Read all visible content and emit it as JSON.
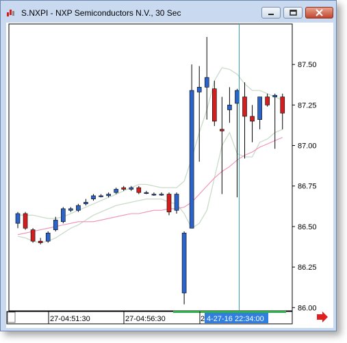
{
  "window": {
    "title": "S.NXPI - NXP Semiconductors N.V., 30 Sec"
  },
  "icons": [
    "app-icon",
    "minimize-icon",
    "maximize-icon",
    "close-icon",
    "scroll-right-arrow-icon"
  ],
  "colors": {
    "up_candle": "#2b63c8",
    "down_candle": "#d11f1f",
    "band": "#c8dcc8",
    "moving_average": "#ef8fb7",
    "crosshair": "#3a9aa8",
    "time_label_bg": "#2f7ee0"
  },
  "chart_data": {
    "type": "candlestick",
    "y_ticks": [
      "87.50",
      "87.25",
      "87.00",
      "86.75",
      "86.50",
      "86.25",
      "86.00"
    ],
    "y_tick_values": [
      87.5,
      87.25,
      87.0,
      86.75,
      86.5,
      86.25,
      86.0
    ],
    "ylim": [
      85.98,
      87.75
    ],
    "x_labels": [
      "27-04:51:30",
      "27-04:56:30"
    ],
    "crosshair_time": "4-27-16 22:34:00",
    "crosshair_bar": 29,
    "candles": [
      {
        "o": 86.52,
        "h": 86.59,
        "l": 86.49,
        "c": 86.58
      },
      {
        "o": 86.58,
        "h": 86.59,
        "l": 86.48,
        "c": 86.49
      },
      {
        "o": 86.48,
        "h": 86.49,
        "l": 86.4,
        "c": 86.41
      },
      {
        "o": 86.41,
        "h": 86.43,
        "l": 86.39,
        "c": 86.4
      },
      {
        "o": 86.41,
        "h": 86.47,
        "l": 86.4,
        "c": 86.46
      },
      {
        "o": 86.48,
        "h": 86.56,
        "l": 86.47,
        "c": 86.54
      },
      {
        "o": 86.53,
        "h": 86.62,
        "l": 86.52,
        "c": 86.61
      },
      {
        "o": 86.6,
        "h": 86.62,
        "l": 86.59,
        "c": 86.61
      },
      {
        "o": 86.6,
        "h": 86.64,
        "l": 86.59,
        "c": 86.63
      },
      {
        "o": 86.64,
        "h": 86.67,
        "l": 86.63,
        "c": 86.65
      },
      {
        "o": 86.67,
        "h": 86.7,
        "l": 86.66,
        "c": 86.69
      },
      {
        "o": 86.69,
        "h": 86.7,
        "l": 86.68,
        "c": 86.69
      },
      {
        "o": 86.69,
        "h": 86.71,
        "l": 86.68,
        "c": 86.7
      },
      {
        "o": 86.71,
        "h": 86.74,
        "l": 86.7,
        "c": 86.73
      },
      {
        "o": 86.74,
        "h": 86.75,
        "l": 86.72,
        "c": 86.73
      },
      {
        "o": 86.73,
        "h": 86.75,
        "l": 86.72,
        "c": 86.74
      },
      {
        "o": 86.74,
        "h": 86.75,
        "l": 86.7,
        "c": 86.71
      },
      {
        "o": 86.71,
        "h": 86.72,
        "l": 86.7,
        "c": 86.71
      },
      {
        "o": 86.7,
        "h": 86.71,
        "l": 86.69,
        "c": 86.7
      },
      {
        "o": 86.7,
        "h": 86.71,
        "l": 86.69,
        "c": 86.7
      },
      {
        "o": 86.7,
        "h": 86.71,
        "l": 86.57,
        "c": 86.59
      },
      {
        "o": 86.6,
        "h": 86.71,
        "l": 86.58,
        "c": 86.7
      },
      {
        "o": 86.09,
        "h": 86.47,
        "l": 86.02,
        "c": 86.46
      },
      {
        "o": 86.49,
        "h": 87.5,
        "l": 86.49,
        "c": 87.34
      },
      {
        "o": 87.33,
        "h": 87.49,
        "l": 86.9,
        "c": 87.36
      },
      {
        "o": 87.36,
        "h": 87.67,
        "l": 87.16,
        "c": 87.42
      },
      {
        "o": 87.35,
        "h": 87.4,
        "l": 87.12,
        "c": 87.15
      },
      {
        "o": 87.1,
        "h": 87.3,
        "l": 86.7,
        "c": 87.09
      },
      {
        "o": 87.22,
        "h": 87.36,
        "l": 87.14,
        "c": 87.25
      },
      {
        "o": 87.26,
        "h": 87.35,
        "l": 86.68,
        "c": 87.34
      },
      {
        "o": 87.3,
        "h": 87.39,
        "l": 86.92,
        "c": 87.18
      },
      {
        "o": 87.18,
        "h": 87.25,
        "l": 87.02,
        "c": 87.15
      },
      {
        "o": 87.16,
        "h": 87.3,
        "l": 87.1,
        "c": 87.3
      },
      {
        "o": 87.3,
        "h": 87.32,
        "l": 87.24,
        "c": 87.25
      },
      {
        "o": 87.3,
        "h": 87.32,
        "l": 86.98,
        "c": 87.31
      },
      {
        "o": 87.3,
        "h": 87.32,
        "l": 87.1,
        "c": 87.2
      }
    ],
    "upper_band": [
      86.57,
      86.57,
      86.57,
      86.56,
      86.55,
      86.55,
      86.56,
      86.58,
      86.6,
      86.62,
      86.64,
      86.66,
      86.68,
      86.7,
      86.72,
      86.74,
      86.76,
      86.76,
      86.75,
      86.74,
      86.74,
      86.74,
      86.78,
      86.92,
      87.08,
      87.22,
      87.4,
      87.48,
      87.47,
      87.44,
      87.38,
      87.34,
      87.34,
      87.32,
      87.3,
      87.28
    ],
    "lower_band": [
      86.44,
      86.43,
      86.41,
      86.4,
      86.41,
      86.43,
      86.46,
      86.49,
      86.51,
      86.54,
      86.57,
      86.59,
      86.61,
      86.63,
      86.64,
      86.65,
      86.66,
      86.67,
      86.67,
      86.67,
      86.65,
      86.64,
      86.58,
      86.49,
      86.52,
      86.6,
      86.8,
      87.0,
      87.08,
      86.95,
      86.93,
      86.93,
      87.02,
      87.04,
      87.08,
      87.1
    ],
    "moving_average": [
      86.45,
      86.46,
      86.47,
      86.48,
      86.49,
      86.5,
      86.51,
      86.52,
      86.53,
      86.53,
      86.53,
      86.54,
      86.55,
      86.56,
      86.57,
      86.58,
      86.58,
      86.59,
      86.6,
      86.6,
      86.61,
      86.61,
      86.62,
      86.65,
      86.7,
      86.75,
      86.8,
      86.84,
      86.87,
      86.91,
      86.94,
      86.96,
      86.99,
      87.01,
      87.03,
      87.05
    ]
  }
}
